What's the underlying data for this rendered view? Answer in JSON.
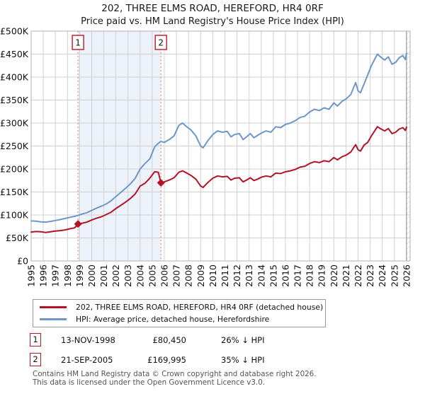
{
  "header": {
    "title_line1": "202, THREE ELMS ROAD, HEREFORD, HR4 0RF",
    "title_line2": "Price paid vs. HM Land Registry's House Price Index (HPI)"
  },
  "legend": {
    "items": [
      {
        "label": "202, THREE ELMS ROAD, HEREFORD, HR4 0RF (detached house)",
        "color": "#b41325"
      },
      {
        "label": "HPI: Average price, detached house, Herefordshire",
        "color": "#6e96c8"
      }
    ]
  },
  "annotations": [
    {
      "num": "1",
      "date": "13-NOV-1998",
      "price": "£80,450",
      "hpi_diff": "26% ↓ HPI"
    },
    {
      "num": "2",
      "date": "21-SEP-2005",
      "price": "£169,995",
      "hpi_diff": "35% ↓ HPI"
    }
  ],
  "footer": {
    "line1": "Contains HM Land Registry data © Crown copyright and database right 2026.",
    "line2": "This data is licensed under the Open Government Licence v3.0."
  },
  "colors": {
    "price_paid_red": "#b41325",
    "hpi_blue": "#6e96c8",
    "marker_box_red": "#bf1722",
    "marker_dash_pink": "#ef8b8b",
    "grid_gray": "#d0d0d0",
    "border_gray": "#b0b0b0",
    "shade_blue": "#edf2fa",
    "hatch_gray": "#c4ccd4"
  },
  "chart_data": {
    "type": "line",
    "x_range": [
      1995,
      2026.3
    ],
    "y_range": [
      0,
      500000
    ],
    "y_tick_labels": [
      "£0",
      "£50K",
      "£100K",
      "£150K",
      "£200K",
      "£250K",
      "£300K",
      "£350K",
      "£400K",
      "£450K",
      "£500K"
    ],
    "x_ticks": [
      1995,
      1996,
      1997,
      1998,
      1999,
      2000,
      2001,
      2002,
      2003,
      2004,
      2005,
      2006,
      2007,
      2008,
      2009,
      2010,
      2011,
      2012,
      2013,
      2014,
      2015,
      2016,
      2017,
      2018,
      2019,
      2020,
      2021,
      2022,
      2023,
      2024,
      2025,
      2026
    ],
    "grid": true,
    "legend_position": "bottom",
    "shade_span": [
      1998.87,
      2005.72
    ],
    "hatch_from": 2026.0,
    "values_unit": "GBP thousands",
    "x": [
      1995.0,
      1995.4,
      1995.8,
      1996.2,
      1996.6,
      1997.0,
      1997.4,
      1997.8,
      1998.2,
      1998.6,
      1998.87,
      1999.2,
      1999.6,
      2000.0,
      2000.4,
      2000.8,
      2001.2,
      2001.6,
      2002.0,
      2002.4,
      2002.8,
      2003.2,
      2003.6,
      2004.0,
      2004.4,
      2004.8,
      2005.2,
      2005.5,
      2005.72,
      2006.0,
      2006.4,
      2006.8,
      2007.2,
      2007.5,
      2007.8,
      2008.2,
      2008.6,
      2009.0,
      2009.2,
      2009.6,
      2010.0,
      2010.4,
      2010.8,
      2011.2,
      2011.5,
      2011.8,
      2012.2,
      2012.5,
      2012.8,
      2013.1,
      2013.4,
      2013.7,
      2014.0,
      2014.4,
      2014.8,
      2015.2,
      2015.6,
      2016.0,
      2016.4,
      2016.8,
      2017.2,
      2017.6,
      2018.0,
      2018.4,
      2018.8,
      2019.2,
      2019.6,
      2020.0,
      2020.3,
      2020.7,
      2021.0,
      2021.4,
      2021.8,
      2022.0,
      2022.2,
      2022.5,
      2022.8,
      2023.1,
      2023.4,
      2023.6,
      2023.9,
      2024.2,
      2024.5,
      2024.8,
      2025.1,
      2025.4,
      2025.7,
      2025.9,
      2026.0
    ],
    "series": [
      {
        "name": "202, THREE ELMS ROAD, HEREFORD, HR4 0RF (detached house)",
        "color": "#b41325",
        "values_k": [
          63,
          64,
          63.5,
          62,
          63.5,
          65,
          66,
          67.5,
          70,
          72,
          80.45,
          82,
          84.5,
          89,
          93,
          96,
          101,
          106,
          114,
          121,
          128,
          136,
          146,
          163,
          169,
          180,
          194,
          193,
          169.995,
          172,
          176,
          181,
          193,
          196,
          192,
          186,
          178,
          163,
          160,
          171,
          180,
          185,
          183,
          184,
          176,
          180,
          181,
          172,
          176,
          181,
          175,
          178,
          182,
          185,
          183,
          191,
          190,
          194,
          196,
          199,
          204,
          206,
          212,
          216,
          214,
          218,
          216,
          225,
          220,
          227,
          230,
          237,
          253,
          242,
          239,
          252,
          258,
          272,
          284,
          292,
          287,
          283,
          288,
          277,
          280,
          287,
          290,
          284,
          291
        ]
      },
      {
        "name": "HPI: Average price, detached house, Herefordshire",
        "color": "#6e96c8",
        "values_k": [
          87,
          86.5,
          85,
          84.5,
          86,
          88,
          90,
          92.5,
          95,
          97,
          99,
          102,
          105,
          110,
          115,
          119,
          124,
          131,
          140,
          149,
          158,
          168,
          180,
          200,
          212,
          222,
          248,
          256,
          260,
          258,
          264,
          272,
          295,
          300,
          293,
          285,
          272,
          250,
          246,
          262,
          275,
          283,
          280,
          282,
          270,
          275,
          277,
          264,
          270,
          277,
          268,
          273,
          278,
          283,
          280,
          292,
          290,
          297,
          300,
          305,
          312,
          315,
          324,
          330,
          327,
          333,
          330,
          344,
          337,
          348,
          352,
          362,
          388,
          370,
          366,
          385,
          405,
          425,
          440,
          450,
          443,
          437,
          444,
          428,
          432,
          442,
          447,
          438,
          452
        ]
      }
    ],
    "markers": [
      {
        "num": "1",
        "date": "13-NOV-1998",
        "x": 1998.87,
        "price": 80450
      },
      {
        "num": "2",
        "date": "21-SEP-2005",
        "x": 2005.72,
        "price": 169995
      }
    ]
  }
}
